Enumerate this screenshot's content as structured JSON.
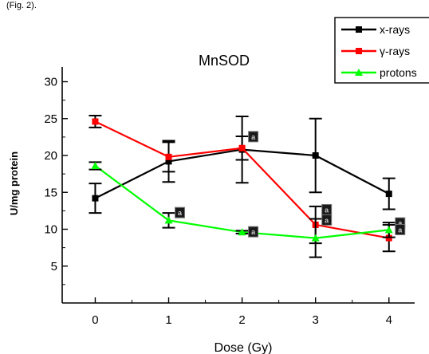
{
  "caption_fragment": "(Fig. 2).",
  "chart_data": {
    "type": "line",
    "title": "MnSOD",
    "xlabel": "Dose (Gy)",
    "ylabel": "U/mg protein",
    "x": [
      0,
      1,
      2,
      3,
      4
    ],
    "xlim": [
      -0.45,
      4.35
    ],
    "ylim": [
      0,
      32
    ],
    "yticks": [
      5,
      10,
      15,
      20,
      25,
      30
    ],
    "grid": false,
    "legend_position": "top-right",
    "series": [
      {
        "name": "x-rays",
        "color": "#000000",
        "marker": "square",
        "values": [
          14.2,
          19.2,
          20.8,
          20.0,
          14.8
        ],
        "error": [
          2.0,
          2.8,
          4.5,
          5.0,
          2.1
        ]
      },
      {
        "name": "γ-rays",
        "color": "#ff0000",
        "marker": "square",
        "values": [
          24.6,
          19.8,
          21.0,
          10.6,
          8.8
        ],
        "error": [
          0.8,
          2.0,
          1.6,
          2.5,
          1.8
        ]
      },
      {
        "name": "protons",
        "color": "#00ff00",
        "marker": "triangle",
        "values": [
          18.6,
          11.2,
          9.6,
          8.8,
          9.9
        ],
        "error": [
          0.5,
          1.0,
          0.2,
          2.6,
          1.0
        ]
      }
    ],
    "significance_marker_label": "a"
  }
}
